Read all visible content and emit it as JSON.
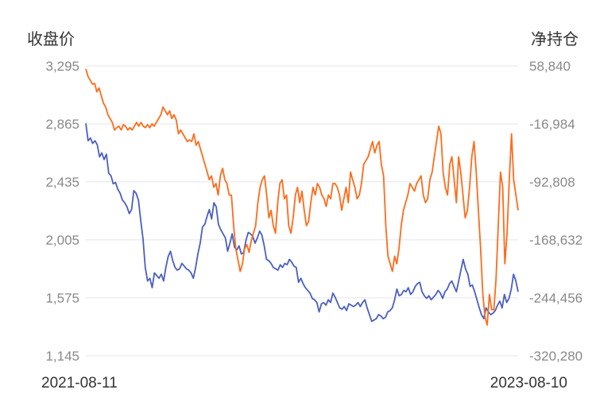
{
  "chart_data": {
    "type": "line",
    "left_axis": {
      "label": "收盘价",
      "ticks": [
        "3,295",
        "2,865",
        "2,435",
        "2,005",
        "1,575",
        "1,145"
      ],
      "range": [
        1145,
        3295
      ]
    },
    "right_axis": {
      "label": "净持仓",
      "ticks": [
        "58,840",
        "-16,984",
        "-92,808",
        "-168,632",
        "-244,456",
        "-320,280"
      ],
      "range": [
        -320280,
        58840
      ]
    },
    "x_labels": [
      "2021-08-11",
      "2023-08-10"
    ],
    "grid": true,
    "series": [
      {
        "axis": "left",
        "color": "#4a5fc1",
        "values": [
          2870,
          2740,
          2760,
          2720,
          2740,
          2710,
          2620,
          2650,
          2600,
          2640,
          2500,
          2480,
          2420,
          2430,
          2380,
          2350,
          2300,
          2280,
          2250,
          2200,
          2230,
          2370,
          2350,
          2300,
          2150,
          2010,
          1800,
          1700,
          1720,
          1650,
          1760,
          1740,
          1720,
          1750,
          1700,
          1800,
          1880,
          1920,
          1850,
          1800,
          1780,
          1790,
          1830,
          1810,
          1790,
          1780,
          1760,
          1720,
          1800,
          1900,
          1980,
          2100,
          2120,
          2180,
          2230,
          2160,
          2280,
          2250,
          2120,
          2080,
          2050,
          2020,
          1920,
          1980,
          2050,
          1950,
          1930,
          1960,
          1900,
          1910,
          2000,
          2060,
          2050,
          2030,
          1980,
          2020,
          2070,
          2040,
          1960,
          1860,
          1850,
          1830,
          1800,
          1790,
          1780,
          1820,
          1800,
          1830,
          1820,
          1860,
          1840,
          1810,
          1800,
          1690,
          1720,
          1680,
          1650,
          1630,
          1610,
          1570,
          1560,
          1540,
          1470,
          1530,
          1540,
          1520,
          1560,
          1540,
          1610,
          1580,
          1540,
          1500,
          1490,
          1510,
          1480,
          1530,
          1520,
          1510,
          1520,
          1540,
          1510,
          1540,
          1560,
          1500,
          1450,
          1400,
          1410,
          1420,
          1450,
          1440,
          1420,
          1430,
          1470,
          1480,
          1500,
          1560,
          1640,
          1590,
          1600,
          1630,
          1620,
          1650,
          1600,
          1620,
          1660,
          1680,
          1690,
          1620,
          1590,
          1570,
          1590,
          1560,
          1580,
          1600,
          1630,
          1610,
          1570,
          1620,
          1640,
          1680,
          1700,
          1660,
          1620,
          1700,
          1780,
          1860,
          1790,
          1750,
          1660,
          1670,
          1620,
          1560,
          1500,
          1450,
          1420,
          1500,
          1470,
          1450,
          1460,
          1480,
          1520,
          1550,
          1500,
          1600,
          1540,
          1570,
          1640,
          1750,
          1700,
          1620
        ]
      },
      {
        "axis": "right",
        "color": "#ff6b1a",
        "values": [
          55000,
          45000,
          40000,
          35000,
          36000,
          25000,
          30000,
          20000,
          10000,
          5000,
          -5000,
          -10000,
          -15000,
          -25000,
          -22000,
          -20000,
          -25000,
          -18000,
          -20000,
          -25000,
          -22000,
          -25000,
          -20000,
          -15000,
          -20000,
          -15000,
          -20000,
          -22000,
          -18000,
          -22000,
          -17000,
          -20000,
          -15000,
          -10000,
          -5000,
          5000,
          0,
          -5000,
          0,
          -10000,
          -5000,
          -12000,
          -30000,
          -25000,
          -30000,
          -35000,
          -40000,
          -38000,
          -40000,
          -30000,
          -45000,
          -40000,
          -50000,
          -60000,
          -70000,
          -80000,
          -90000,
          -85000,
          -100000,
          -95000,
          -110000,
          -85000,
          -75000,
          -90000,
          -95000,
          -110000,
          -110000,
          -150000,
          -180000,
          -195000,
          -210000,
          -200000,
          -180000,
          -175000,
          -185000,
          -170000,
          -160000,
          -150000,
          -120000,
          -100000,
          -90000,
          -85000,
          -110000,
          -140000,
          -130000,
          -150000,
          -160000,
          -120000,
          -95000,
          -90000,
          -115000,
          -110000,
          -150000,
          -160000,
          -140000,
          -110000,
          -100000,
          -120000,
          -105000,
          -130000,
          -150000,
          -145000,
          -120000,
          -100000,
          -110000,
          -95000,
          -100000,
          -110000,
          -115000,
          -125000,
          -110000,
          -115000,
          -95000,
          -95000,
          -100000,
          -110000,
          -130000,
          -115000,
          -100000,
          -120000,
          -80000,
          -90000,
          -100000,
          -115000,
          -110000,
          -95000,
          -70000,
          -65000,
          -60000,
          -50000,
          -40000,
          -55000,
          -45000,
          -40000,
          -70000,
          -85000,
          -150000,
          -190000,
          -200000,
          -210000,
          -190000,
          -200000,
          -180000,
          -150000,
          -130000,
          -120000,
          -110000,
          -95000,
          -100000,
          -105000,
          -95000,
          -90000,
          -85000,
          -110000,
          -120000,
          -115000,
          -90000,
          -80000,
          -60000,
          -40000,
          -20000,
          -30000,
          -80000,
          -100000,
          -110000,
          -70000,
          -60000,
          -90000,
          -120000,
          -60000,
          -80000,
          -110000,
          -140000,
          -130000,
          -100000,
          -60000,
          -40000,
          -80000,
          -130000,
          -180000,
          -240000,
          -270000,
          -280000,
          -240000,
          -260000,
          -260000,
          -220000,
          -150000,
          -80000,
          -100000,
          -200000,
          -160000,
          -90000,
          -30000,
          -90000,
          -110000,
          -130000
        ]
      }
    ]
  }
}
